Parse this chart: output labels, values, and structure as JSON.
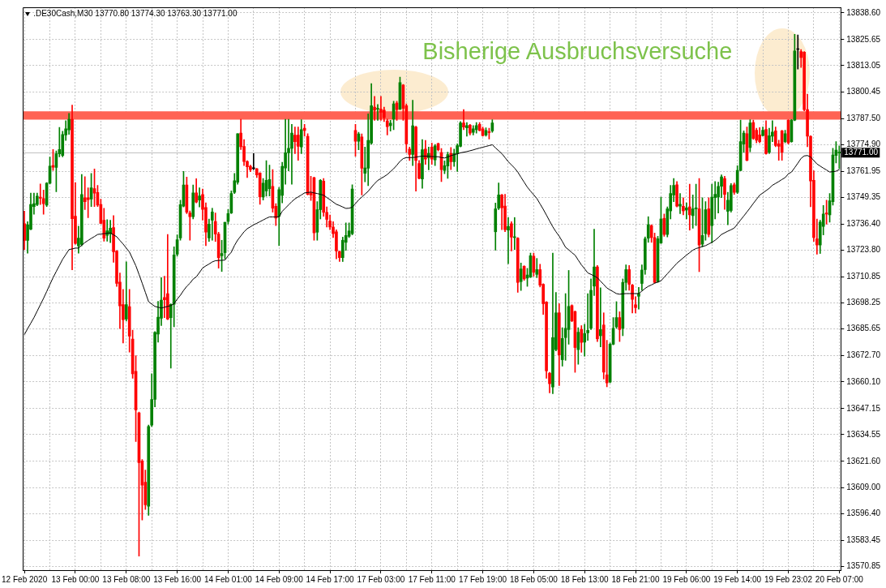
{
  "chart_data": {
    "type": "candlestick",
    "title": ".DE30Cash,M30 13770.80 13774.30 13763.30 13771.00",
    "annotations": [
      "Bisherige Ausbruchsversuche"
    ],
    "categories": [
      "12 Feb 2020",
      null,
      null,
      null,
      null,
      null,
      null,
      null,
      null,
      null,
      null,
      null,
      null,
      null,
      null,
      null,
      "13 Feb 00:00",
      null,
      null,
      null,
      null,
      null,
      null,
      null,
      null,
      null,
      null,
      null,
      null,
      null,
      null,
      null,
      "13 Feb 08:00",
      null,
      null,
      null,
      null,
      null,
      null,
      null,
      null,
      null,
      null,
      null,
      null,
      null,
      null,
      null,
      "13 Feb 16:00",
      null,
      null,
      null,
      null,
      null,
      null,
      null,
      null,
      null,
      null,
      null,
      null,
      null,
      null,
      null,
      "14 Feb 01:00",
      null,
      null,
      null,
      null,
      null,
      null,
      null,
      null,
      null,
      null,
      null,
      null,
      null,
      null,
      null,
      "14 Feb 09:00",
      null,
      null,
      null,
      null,
      null,
      null,
      null,
      null,
      null,
      null,
      null,
      null,
      null,
      null,
      null,
      "14 Feb 17:00",
      null,
      null,
      null,
      null,
      null,
      null,
      null,
      null,
      null,
      null,
      null,
      null,
      null,
      null,
      null,
      "17 Feb 03:00",
      null,
      null,
      null,
      null,
      null,
      null,
      null,
      null,
      null,
      null,
      null,
      null,
      null,
      null,
      null,
      "17 Feb 11:00",
      null,
      null,
      null,
      null,
      null,
      null,
      null,
      null,
      null,
      null,
      null,
      null,
      null,
      null,
      null,
      "17 Feb 19:00",
      null,
      null,
      null,
      null,
      null,
      null,
      null,
      null,
      null,
      null,
      null,
      null,
      null,
      null,
      null,
      "18 Feb 05:00",
      null,
      null,
      null,
      null,
      null,
      null,
      null,
      null,
      null,
      null,
      null,
      null,
      null,
      null,
      null,
      "18 Feb 13:00",
      null,
      null,
      null,
      null,
      null,
      null,
      null,
      null,
      null,
      null,
      null,
      null,
      null,
      null,
      null,
      "18 Feb 21:00",
      null,
      null,
      null,
      null,
      null,
      null,
      null,
      null,
      null,
      null,
      null,
      null,
      null,
      null,
      null,
      "19 Feb 06:00",
      null,
      null,
      null,
      null,
      null,
      null,
      null,
      null,
      null,
      null,
      null,
      null,
      null,
      null,
      null,
      "19 Feb 14:00",
      null,
      null,
      null,
      null,
      null,
      null,
      null,
      null,
      null,
      null,
      null,
      null,
      null,
      null,
      null,
      "19 Feb 23:02",
      null,
      null,
      null,
      null,
      null,
      null,
      null,
      null,
      null,
      null,
      null,
      null,
      null,
      null,
      null,
      "20 Feb 07:00"
    ],
    "ohlc": [
      [
        13736.6,
        13742.7,
        13724.0,
        13728.5
      ],
      [
        13728.5,
        13737.6,
        13722.3,
        13736.1
      ],
      [
        13733.9,
        13751.4,
        13733.6,
        13745.9
      ],
      [
        13744.9,
        13751.4,
        13741.2,
        13746.3
      ],
      [
        13745.9,
        13751.4,
        13745.3,
        13749.9
      ],
      [
        13749.5,
        13755.8,
        13745.9,
        13748.9
      ],
      [
        13748.8,
        13752.9,
        13741.2,
        13746.3
      ],
      [
        13745.6,
        13756.5,
        13744.9,
        13756.2
      ],
      [
        13756.2,
        13768.9,
        13755.8,
        13764.5
      ],
      [
        13764.8,
        13772.5,
        13762.4,
        13763.9
      ],
      [
        13763.8,
        13771.8,
        13752.1,
        13770.4
      ],
      [
        13770.4,
        13783.2,
        13768.9,
        13772.5
      ],
      [
        13769.6,
        13781.3,
        13768.9,
        13779.8
      ],
      [
        13779.5,
        13786.4,
        13776.9,
        13782.5
      ],
      [
        13782.0,
        13790.0,
        13779.8,
        13787.1
      ],
      [
        13787.1,
        13794.0,
        13714.3,
        13739.0
      ],
      [
        13740.2,
        13756.5,
        13726.7,
        13727.1
      ],
      [
        13725.9,
        13735.4,
        13722.3,
        13729.6
      ],
      [
        13726.6,
        13760.4,
        13725.9,
        13750.7
      ],
      [
        13749.2,
        13759.4,
        13743.4,
        13747.3
      ],
      [
        13749.2,
        13754.0,
        13739.5,
        13748.2
      ],
      [
        13748.5,
        13760.9,
        13744.9,
        13754.0
      ],
      [
        13753.6,
        13763.1,
        13744.9,
        13751.4
      ],
      [
        13751.7,
        13755.1,
        13744.9,
        13745.6
      ],
      [
        13745.9,
        13748.5,
        13736.6,
        13736.8
      ],
      [
        13738.3,
        13744.1,
        13728.1,
        13729.6
      ],
      [
        13731.0,
        13738.6,
        13728.1,
        13733.2
      ],
      [
        13731.7,
        13738.3,
        13727.4,
        13734.4
      ],
      [
        13734.7,
        13740.5,
        13717.9,
        13723.0
      ],
      [
        13723.4,
        13723.7,
        13706.3,
        13707.7
      ],
      [
        13708.4,
        13712.8,
        13685.9,
        13696.8
      ],
      [
        13697.5,
        13704.8,
        13678.9,
        13690.2
      ],
      [
        13690.5,
        13718.2,
        13689.5,
        13697.5
      ],
      [
        13696.5,
        13704.8,
        13674.5,
        13682.2
      ],
      [
        13680.8,
        13685.1,
        13661.8,
        13664.0
      ],
      [
        13665.2,
        13672.7,
        13631.2,
        13646.5
      ],
      [
        13645.1,
        13645.5,
        13575.8,
        13621.0
      ],
      [
        13621.7,
        13622.5,
        13593.3,
        13610.1
      ],
      [
        13611.5,
        13617.4,
        13598.4,
        13600.6
      ],
      [
        13599.9,
        13639.2,
        13595.5,
        13638.5
      ],
      [
        13639.2,
        13664.0,
        13638.5,
        13651.6
      ],
      [
        13651.6,
        13684.4,
        13648.0,
        13684.0
      ],
      [
        13683.2,
        13699.0,
        13679.3,
        13691.4
      ],
      [
        13690.9,
        13710.5,
        13687.3,
        13699.6
      ],
      [
        13700.9,
        13711.2,
        13691.2,
        13699.8
      ],
      [
        13702.8,
        13731.4,
        13690.2,
        13690.5
      ],
      [
        13691.2,
        13697.9,
        13666.7,
        13697.6
      ],
      [
        13697.6,
        13725.4,
        13686.7,
        13721.5
      ],
      [
        13721.9,
        13731.2,
        13720.9,
        13728.9
      ],
      [
        13729.7,
        13748.0,
        13728.6,
        13745.8
      ],
      [
        13745.1,
        13761.9,
        13744.7,
        13755.3
      ],
      [
        13755.3,
        13759.2,
        13741.5,
        13742.2
      ],
      [
        13741.8,
        13742.8,
        13728.6,
        13740.0
      ],
      [
        13740.0,
        13755.3,
        13738.9,
        13751.5
      ],
      [
        13751.5,
        13758.4,
        13746.7,
        13747.1
      ],
      [
        13748.0,
        13754.0,
        13744.7,
        13750.0
      ],
      [
        13750.7,
        13753.4,
        13738.3,
        13743.5
      ],
      [
        13744.5,
        13746.7,
        13726.0,
        13732.5
      ],
      [
        13729.7,
        13738.9,
        13728.0,
        13736.4
      ],
      [
        13738.3,
        13744.1,
        13728.6,
        13742.3
      ],
      [
        13737.7,
        13741.8,
        13728.0,
        13731.6
      ],
      [
        13731.6,
        13732.5,
        13715.1,
        13720.2
      ],
      [
        13721.1,
        13728.6,
        13713.5,
        13722.2
      ],
      [
        13722.6,
        13737.3,
        13719.6,
        13737.3
      ],
      [
        13737.7,
        13743.5,
        13736.4,
        13741.5
      ],
      [
        13741.8,
        13752.5,
        13741.5,
        13751.2
      ],
      [
        13751.8,
        13760.9,
        13751.2,
        13757.4
      ],
      [
        13756.7,
        13780.2,
        13755.7,
        13780.2
      ],
      [
        13780.5,
        13787.1,
        13772.5,
        13773.8
      ],
      [
        13774.0,
        13777.3,
        13764.7,
        13766.7
      ],
      [
        13766.7,
        13767.1,
        13758.9,
        13764.1
      ],
      [
        13764.4,
        13765.0,
        13761.8,
        13762.8
      ],
      [
        13763.3,
        13770.5,
        13762.8,
        13763.3
      ],
      [
        13763.2,
        13763.4,
        13758.9,
        13760.2
      ],
      [
        13761.1,
        13761.3,
        13746.0,
        13749.6
      ],
      [
        13749.5,
        13758.5,
        13748.0,
        13756.2
      ],
      [
        13752.5,
        13767.1,
        13749.9,
        13757.6
      ],
      [
        13753.5,
        13765.0,
        13750.0,
        13758.0
      ],
      [
        13754.7,
        13762.8,
        13742.2,
        13744.1
      ],
      [
        13745.0,
        13746.3,
        13735.7,
        13739.3
      ],
      [
        13740.2,
        13754.2,
        13726.0,
        13753.1
      ],
      [
        13750.3,
        13766.3,
        13746.7,
        13764.4
      ],
      [
        13763.5,
        13787.1,
        13755.7,
        13770.9
      ],
      [
        13770.9,
        13787.1,
        13762.2,
        13773.1
      ],
      [
        13773.1,
        13784.7,
        13755.7,
        13780.5
      ],
      [
        13779.5,
        13783.4,
        13770.5,
        13776.3
      ],
      [
        13779.5,
        13783.4,
        13767.3,
        13774.0
      ],
      [
        13773.7,
        13786.9,
        13770.5,
        13782.1
      ],
      [
        13782.8,
        13784.7,
        13778.9,
        13781.7
      ],
      [
        13778.9,
        13780.2,
        13750.5,
        13750.8
      ],
      [
        13751.6,
        13759.6,
        13747.9,
        13750.5
      ],
      [
        13758.9,
        13759.2,
        13728.6,
        13732.2
      ],
      [
        13732.5,
        13747.3,
        13728.6,
        13743.4
      ],
      [
        13743.4,
        13758.0,
        13738.9,
        13757.6
      ],
      [
        13757.2,
        13758.5,
        13740.2,
        13742.1
      ],
      [
        13742.1,
        13744.7,
        13735.0,
        13738.7
      ],
      [
        13737.9,
        13740.8,
        13733.7,
        13735.0
      ],
      [
        13735.0,
        13737.6,
        13729.9,
        13731.8
      ],
      [
        13732.7,
        13733.7,
        13719.6,
        13723.4
      ],
      [
        13723.2,
        13723.4,
        13718.3,
        13720.2
      ],
      [
        13720.2,
        13730.1,
        13718.3,
        13728.6
      ],
      [
        13727.6,
        13737.0,
        13723.7,
        13730.9
      ],
      [
        13730.5,
        13737.0,
        13729.9,
        13733.1
      ],
      [
        13731.8,
        13755.4,
        13731.2,
        13753.4
      ],
      [
        13781.7,
        13784.7,
        13769.2,
        13776.5
      ],
      [
        13776.5,
        13780.8,
        13772.4,
        13780.1
      ],
      [
        13778.6,
        13780.1,
        13750.5,
        13763.4
      ],
      [
        13761.0,
        13773.7,
        13756.9,
        13763.6
      ],
      [
        13763.4,
        13789.8,
        13755.0,
        13776.9
      ],
      [
        13775.6,
        13804.4,
        13775.0,
        13793.7
      ],
      [
        13793.0,
        13798.2,
        13786.6,
        13791.5
      ],
      [
        13792.0,
        13794.3,
        13786.6,
        13792.4
      ],
      [
        13792.0,
        13798.2,
        13786.6,
        13790.5
      ],
      [
        13791.5,
        13793.0,
        13786.0,
        13788.0
      ],
      [
        13786.3,
        13787.2,
        13779.5,
        13783.6
      ],
      [
        13784.0,
        13786.6,
        13781.4,
        13785.3
      ],
      [
        13787.2,
        13795.9,
        13782.1,
        13794.6
      ],
      [
        13795.0,
        13795.9,
        13786.6,
        13791.8
      ],
      [
        13792.0,
        13807.5,
        13791.8,
        13804.9
      ],
      [
        13803.7,
        13804.0,
        13786.6,
        13792.4
      ],
      [
        13793.7,
        13794.6,
        13771.1,
        13775.2
      ],
      [
        13772.7,
        13773.7,
        13767.2,
        13770.1
      ],
      [
        13770.1,
        13796.3,
        13764.7,
        13784.0
      ],
      [
        13783.4,
        13783.8,
        13752.4,
        13767.2
      ],
      [
        13765.7,
        13767.2,
        13758.2,
        13758.5
      ],
      [
        13758.2,
        13777.3,
        13753.7,
        13772.4
      ],
      [
        13772.7,
        13776.9,
        13765.3,
        13767.9
      ],
      [
        13768.5,
        13773.7,
        13762.7,
        13770.5
      ],
      [
        13773.7,
        13775.6,
        13765.3,
        13767.9
      ],
      [
        13767.5,
        13775.0,
        13764.7,
        13774.3
      ],
      [
        13775.4,
        13775.6,
        13771.8,
        13772.4
      ],
      [
        13771.0,
        13773.0,
        13757.0,
        13762.8
      ],
      [
        13762.4,
        13767.0,
        13760.8,
        13764.7
      ],
      [
        13764.5,
        13771.2,
        13758.5,
        13770.1
      ],
      [
        13770.5,
        13773.5,
        13762.8,
        13766.6
      ],
      [
        13766.6,
        13772.7,
        13764.3,
        13770.5
      ],
      [
        13770.5,
        13775.3,
        13761.9,
        13774.4
      ],
      [
        13774.0,
        13786.0,
        13773.7,
        13785.4
      ],
      [
        13785.4,
        13791.8,
        13782.1,
        13783.4
      ],
      [
        13783.0,
        13785.6,
        13778.9,
        13784.1
      ],
      [
        13784.3,
        13784.7,
        13779.5,
        13780.4
      ],
      [
        13780.8,
        13784.1,
        13779.5,
        13782.5
      ],
      [
        13782.1,
        13785.6,
        13780.4,
        13784.1
      ],
      [
        13784.7,
        13785.6,
        13781.5,
        13781.7
      ],
      [
        13782.5,
        13783.4,
        13778.9,
        13779.2
      ],
      [
        13779.5,
        13783.0,
        13778.9,
        13781.7
      ],
      [
        13781.0,
        13782.8,
        13777.6,
        13780.7
      ],
      [
        13781.5,
        13786.9,
        13780.8,
        13785.4
      ],
      [
        13732.7,
        13746.6,
        13723.8,
        13743.8
      ],
      [
        13744.1,
        13756.3,
        13743.4,
        13750.5
      ],
      [
        13750.5,
        13750.8,
        13733.7,
        13744.3
      ],
      [
        13745.1,
        13750.8,
        13732.7,
        13733.7
      ],
      [
        13733.5,
        13739.6,
        13717.2,
        13735.3
      ],
      [
        13736.6,
        13737.6,
        13723.4,
        13730.1
      ],
      [
        13729.9,
        13739.6,
        13724.1,
        13730.3
      ],
      [
        13729.6,
        13729.9,
        13703.4,
        13708.2
      ],
      [
        13708.6,
        13717.6,
        13704.3,
        13714.7
      ],
      [
        13716.0,
        13716.3,
        13709.2,
        13709.9
      ],
      [
        13710.3,
        13715.0,
        13706.3,
        13711.8
      ],
      [
        13710.8,
        13722.4,
        13710.5,
        13721.1
      ],
      [
        13720.9,
        13722.4,
        13711.2,
        13713.1
      ],
      [
        13712.1,
        13719.8,
        13710.5,
        13714.4
      ],
      [
        13714.4,
        13717.0,
        13706.0,
        13706.9
      ],
      [
        13707.3,
        13707.6,
        13692.7,
        13697.9
      ],
      [
        13698.7,
        13698.9,
        13661.8,
        13665.4
      ],
      [
        13664.3,
        13664.7,
        13654.8,
        13659.2
      ],
      [
        13657.6,
        13722.4,
        13654.4,
        13681.5
      ],
      [
        13675.7,
        13703.4,
        13675.1,
        13693.5
      ],
      [
        13693.5,
        13697.9,
        13658.3,
        13673.1
      ],
      [
        13670.8,
        13686.3,
        13667.7,
        13681.1
      ],
      [
        13681.5,
        13702.8,
        13670.5,
        13686.0
      ],
      [
        13685.4,
        13714.0,
        13678.3,
        13696.6
      ],
      [
        13697.0,
        13697.4,
        13689.2,
        13689.6
      ],
      [
        13694.1,
        13694.4,
        13664.7,
        13676.7
      ],
      [
        13675.7,
        13686.3,
        13668.6,
        13684.1
      ],
      [
        13685.5,
        13687.3,
        13674.4,
        13679.2
      ],
      [
        13679.3,
        13688.0,
        13672.5,
        13683.5
      ],
      [
        13683.8,
        13702.8,
        13680.2,
        13685.0
      ],
      [
        13686.0,
        13709.9,
        13685.4,
        13704.4
      ],
      [
        13706.4,
        13734.0,
        13701.8,
        13715.7
      ],
      [
        13715.7,
        13716.4,
        13679.6,
        13680.9
      ],
      [
        13682.4,
        13705.6,
        13677.0,
        13685.4
      ],
      [
        13687.6,
        13693.5,
        13661.5,
        13664.8
      ],
      [
        13663.5,
        13680.2,
        13657.7,
        13659.6
      ],
      [
        13660.0,
        13678.9,
        13659.6,
        13678.3
      ],
      [
        13678.3,
        13691.2,
        13678.0,
        13686.0
      ],
      [
        13686.7,
        13698.9,
        13686.0,
        13691.2
      ],
      [
        13691.2,
        13694.0,
        13679.6,
        13685.4
      ],
      [
        13686.0,
        13709.9,
        13682.4,
        13708.2
      ],
      [
        13708.2,
        13716.7,
        13704.4,
        13714.4
      ],
      [
        13714.4,
        13716.4,
        13704.4,
        13707.3
      ],
      [
        13706.9,
        13707.3,
        13693.4,
        13700.0
      ],
      [
        13697.4,
        13701.3,
        13693.4,
        13696.0
      ],
      [
        13701.5,
        13705.8,
        13695.3,
        13702.8
      ],
      [
        13707.7,
        13716.7,
        13704.4,
        13714.2
      ],
      [
        13714.4,
        13730.2,
        13712.1,
        13729.3
      ],
      [
        13729.6,
        13740.0,
        13727.6,
        13736.1
      ],
      [
        13735.7,
        13736.1,
        13727.6,
        13729.9
      ],
      [
        13729.9,
        13732.1,
        13707.9,
        13708.2
      ],
      [
        13708.6,
        13730.5,
        13708.2,
        13729.3
      ],
      [
        13727.3,
        13749.5,
        13727.0,
        13738.9
      ],
      [
        13739.2,
        13741.3,
        13730.5,
        13731.4
      ],
      [
        13731.4,
        13744.7,
        13730.2,
        13743.8
      ],
      [
        13742.8,
        13755.1,
        13738.9,
        13751.2
      ],
      [
        13750.5,
        13758.5,
        13747.3,
        13755.1
      ],
      [
        13755.4,
        13757.0,
        13744.7,
        13745.1
      ],
      [
        13745.1,
        13751.2,
        13741.5,
        13746.0
      ],
      [
        13745.0,
        13749.2,
        13740.9,
        13742.8
      ],
      [
        13743.2,
        13746.7,
        13738.9,
        13744.3
      ],
      [
        13744.7,
        13755.7,
        13733.5,
        13740.9
      ],
      [
        13740.5,
        13750.5,
        13734.4,
        13743.8
      ],
      [
        13743.8,
        13755.7,
        13735.7,
        13744.3
      ],
      [
        13743.8,
        13758.5,
        13713.4,
        13726.3
      ],
      [
        13726.7,
        13749.2,
        13725.4,
        13730.9
      ],
      [
        13731.8,
        13747.3,
        13728.6,
        13743.4
      ],
      [
        13743.8,
        13749.2,
        13730.2,
        13731.4
      ],
      [
        13735.7,
        13755.7,
        13727.3,
        13749.5
      ],
      [
        13749.2,
        13757.0,
        13738.9,
        13750.8
      ],
      [
        13749.5,
        13756.7,
        13741.8,
        13754.7
      ],
      [
        13754.7,
        13760.2,
        13749.2,
        13759.3
      ],
      [
        13758.5,
        13759.6,
        13743.5,
        13750.8
      ],
      [
        13742.6,
        13751.8,
        13736.1,
        13748.0
      ],
      [
        13743.0,
        13756.0,
        13742.2,
        13755.0
      ],
      [
        13755.4,
        13756.3,
        13750.8,
        13751.8
      ],
      [
        13751.8,
        13764.7,
        13751.2,
        13762.4
      ],
      [
        13762.4,
        13786.7,
        13762.2,
        13776.3
      ],
      [
        13775.1,
        13781.5,
        13771.2,
        13780.5
      ],
      [
        13780.2,
        13783.4,
        13767.0,
        13767.3
      ],
      [
        13773.5,
        13786.9,
        13771.4,
        13785.4
      ],
      [
        13785.6,
        13786.7,
        13777.4,
        13777.9
      ],
      [
        13781.8,
        13782.8,
        13775.7,
        13777.0
      ],
      [
        13779.6,
        13783.1,
        13775.7,
        13776.3
      ],
      [
        13779.2,
        13783.4,
        13778.9,
        13781.8
      ],
      [
        13782.2,
        13786.4,
        13770.2,
        13770.5
      ],
      [
        13771.2,
        13782.8,
        13770.5,
        13779.2
      ],
      [
        13778.9,
        13786.4,
        13776.3,
        13780.9
      ],
      [
        13781.5,
        13783.4,
        13773.8,
        13774.4
      ],
      [
        13775.3,
        13777.0,
        13767.3,
        13774.0
      ],
      [
        13781.5,
        13781.8,
        13767.3,
        13771.2
      ],
      [
        13776.3,
        13781.8,
        13775.7,
        13780.2
      ],
      [
        13786.7,
        13786.9,
        13775.1,
        13775.7
      ],
      [
        13776.3,
        13787.0,
        13776.0,
        13786.7
      ],
      [
        13786.7,
        13828.2,
        13786.4,
        13820.2
      ],
      [
        13820.9,
        13827.9,
        13811.4,
        13820.9
      ],
      [
        13819.9,
        13820.9,
        13812.2,
        13817.0
      ],
      [
        13819.6,
        13819.9,
        13791.2,
        13791.8
      ],
      [
        13791.8,
        13799.3,
        13773.8,
        13778.9
      ],
      [
        13778.9,
        13779.2,
        13744.8,
        13757.3
      ],
      [
        13757.6,
        13762.2,
        13728.0,
        13729.9
      ],
      [
        13729.3,
        13738.9,
        13721.9,
        13726.3
      ],
      [
        13726.3,
        13738.3,
        13722.2,
        13737.4
      ],
      [
        13735.3,
        13745.4,
        13731.2,
        13741.3
      ],
      [
        13741.8,
        13748.0,
        13736.4,
        13741.3
      ],
      [
        13740.9,
        13751.2,
        13737.4,
        13747.7
      ],
      [
        13747.3,
        13773.1,
        13745.6,
        13769.9
      ],
      [
        13769.6,
        13776.3,
        13766.0,
        13772.2
      ],
      [
        13770.8,
        13774.3,
        13763.3,
        13771.0
      ]
    ],
    "colors": [
      "#ff0000",
      "#008000",
      "#008000",
      "#008000",
      "#008000",
      "#ff0000",
      "#ff0000",
      "#008000",
      "#008000",
      "#ff0000",
      "#008000",
      "#008000",
      "#008000",
      "#008000",
      "#008000",
      "#ff0000",
      "#ff0000",
      "#008000",
      "#008000",
      "#ff0000",
      "#ff0000",
      "#008000",
      "#ff0000",
      "#ff0000",
      "#ff0000",
      "#ff0000",
      "#008000",
      "#008000",
      "#ff0000",
      "#ff0000",
      "#ff0000",
      "#ff0000",
      "#008000",
      "#ff0000",
      "#ff0000",
      "#ff0000",
      "#ff0000",
      "#ff0000",
      "#ff0000",
      "#008000",
      "#008000",
      "#008000",
      "#008000",
      "#008000",
      "#ff0000",
      "#ff0000",
      "#008000",
      "#008000",
      "#008000",
      "#008000",
      "#008000",
      "#ff0000",
      "#ff0000",
      "#008000",
      "#ff0000",
      "#008000",
      "#ff0000",
      "#ff0000",
      "#008000",
      "#008000",
      "#ff0000",
      "#ff0000",
      "#008000",
      "#008000",
      "#008000",
      "#008000",
      "#008000",
      "#008000",
      "#ff0000",
      "#ff0000",
      "#ff0000",
      "#ff0000",
      "#000000",
      "#ff0000",
      "#ff0000",
      "#008000",
      "#008000",
      "#008000",
      "#ff0000",
      "#ff0000",
      "#008000",
      "#008000",
      "#008000",
      "#008000",
      "#008000",
      "#ff0000",
      "#ff0000",
      "#008000",
      "#ff0000",
      "#ff0000",
      "#ff0000",
      "#ff0000",
      "#008000",
      "#008000",
      "#ff0000",
      "#ff0000",
      "#ff0000",
      "#ff0000",
      "#ff0000",
      "#ff0000",
      "#008000",
      "#008000",
      "#008000",
      "#008000",
      "#ff0000",
      "#008000",
      "#ff0000",
      "#008000",
      "#008000",
      "#008000",
      "#ff0000",
      "#008000",
      "#ff0000",
      "#ff0000",
      "#ff0000",
      "#008000",
      "#008000",
      "#ff0000",
      "#008000",
      "#ff0000",
      "#ff0000",
      "#ff0000",
      "#008000",
      "#ff0000",
      "#ff0000",
      "#008000",
      "#ff0000",
      "#008000",
      "#ff0000",
      "#008000",
      "#ff0000",
      "#ff0000",
      "#008000",
      "#008000",
      "#ff0000",
      "#008000",
      "#008000",
      "#008000",
      "#ff0000",
      "#008000",
      "#ff0000",
      "#008000",
      "#008000",
      "#ff0000",
      "#ff0000",
      "#008000",
      "#ff0000",
      "#008000",
      "#008000",
      "#008000",
      "#ff0000",
      "#ff0000",
      "#008000",
      "#ff0000",
      "#008000",
      "#ff0000",
      "#008000",
      "#ff0000",
      "#008000",
      "#008000",
      "#ff0000",
      "#008000",
      "#ff0000",
      "#ff0000",
      "#ff0000",
      "#ff0000",
      "#008000",
      "#008000",
      "#ff0000",
      "#008000",
      "#008000",
      "#008000",
      "#ff0000",
      "#ff0000",
      "#008000",
      "#ff0000",
      "#008000",
      "#008000",
      "#008000",
      "#008000",
      "#ff0000",
      "#008000",
      "#ff0000",
      "#ff0000",
      "#008000",
      "#008000",
      "#008000",
      "#ff0000",
      "#008000",
      "#008000",
      "#ff0000",
      "#ff0000",
      "#ff0000",
      "#008000",
      "#008000",
      "#008000",
      "#008000",
      "#ff0000",
      "#ff0000",
      "#008000",
      "#008000",
      "#ff0000",
      "#008000",
      "#008000",
      "#008000",
      "#ff0000",
      "#008000",
      "#ff0000",
      "#008000",
      "#ff0000",
      "#008000",
      "#008000",
      "#ff0000",
      "#008000",
      "#008000",
      "#ff0000",
      "#008000",
      "#008000",
      "#008000",
      "#008000",
      "#ff0000",
      "#008000",
      "#008000",
      "#ff0000",
      "#008000",
      "#008000",
      "#008000",
      "#ff0000",
      "#008000",
      "#ff0000",
      "#ff0000",
      "#ff0000",
      "#008000",
      "#ff0000",
      "#008000",
      "#008000",
      "#ff0000",
      "#ff0000",
      "#ff0000",
      "#008000",
      "#ff0000",
      "#008000",
      "#008000",
      "#000000",
      "#ff0000",
      "#ff0000",
      "#ff0000",
      "#ff0000",
      "#ff0000",
      "#ff0000",
      "#008000",
      "#008000",
      "#ff0000",
      "#008000",
      "#008000",
      "#008000",
      "#008000"
    ],
    "series": [
      {
        "type": "line",
        "color": "#000000",
        "values": [
          13683.0,
          13685.8,
          13688.5,
          13691.2,
          13694.3,
          13697.4,
          13700.5,
          13703.8,
          13707.2,
          13710.5,
          13713.5,
          13716.4,
          13719.4,
          13721.7,
          13724.1,
          13724.4,
          13724.8,
          13724.8,
          13726.2,
          13727.5,
          13728.5,
          13729.5,
          13730.4,
          13731.4,
          13731.6,
          13731.8,
          13732.0,
          13732.2,
          13731.2,
          13730.3,
          13728.5,
          13726.8,
          13724.8,
          13722.9,
          13719.6,
          13716.3,
          13712.1,
          13707.8,
          13703.4,
          13698.9,
          13697.7,
          13696.6,
          13696.2,
          13695.8,
          13696.2,
          13696.6,
          13697.0,
          13697.9,
          13700.1,
          13702.0,
          13704.3,
          13706.3,
          13707.8,
          13709.8,
          13710.9,
          13713.0,
          13715.2,
          13716.2,
          13717.1,
          13718.1,
          13718.7,
          13718.8,
          13718.9,
          13719.0,
          13721.1,
          13722.8,
          13726.1,
          13728.7,
          13730.7,
          13732.7,
          13734.2,
          13735.1,
          13736.1,
          13736.8,
          13737.6,
          13738.4,
          13739.2,
          13739.9,
          13739.9,
          13739.9,
          13739.9,
          13742.6,
          13744.2,
          13745.7,
          13747.3,
          13748.6,
          13749.6,
          13750.5,
          13751.5,
          13751.7,
          13751.9,
          13751.5,
          13751.2,
          13750.8,
          13750.4,
          13749.3,
          13748.2,
          13747.1,
          13746.0,
          13745.4,
          13744.7,
          13744.0,
          13744.1,
          13744.6,
          13746.3,
          13748.1,
          13749.5,
          13750.9,
          13752.3,
          13754.2,
          13756.0,
          13757.5,
          13758.5,
          13759.4,
          13760.4,
          13761.8,
          13763.2,
          13764.9,
          13766.8,
          13768.1,
          13768.6,
          13768.6,
          13768.6,
          13768.8,
          13769.1,
          13769.3,
          13769.3,
          13769.2,
          13769.1,
          13769.0,
          13769.0,
          13768.6,
          13768.4,
          13768.9,
          13769.5,
          13770.0,
          13770.4,
          13770.9,
          13771.2,
          13771.5,
          13771.9,
          13772.3,
          13772.8,
          13773.2,
          13773.6,
          13774.0,
          13774.4,
          13774.8,
          13773.3,
          13771.9,
          13770.5,
          13768.6,
          13766.6,
          13765.1,
          13763.5,
          13761.6,
          13759.1,
          13756.7,
          13754.3,
          13752.4,
          13750.6,
          13748.8,
          13746.2,
          13743.6,
          13740.8,
          13737.9,
          13735.1,
          13732.7,
          13730.6,
          13728.0,
          13725.2,
          13724.0,
          13722.6,
          13721.4,
          13719.0,
          13716.7,
          13714.8,
          13712.8,
          13712.1,
          13711.3,
          13710.5,
          13708.8,
          13707.2,
          13705.5,
          13704.6,
          13703.7,
          13702.8,
          13702.5,
          13702.7,
          13702.8,
          13702.8,
          13702.8,
          13702.8,
          13702.8,
          13704.0,
          13705.3,
          13706.3,
          13707.0,
          13707.8,
          13708.4,
          13709.0,
          13710.7,
          13712.4,
          13714.1,
          13715.8,
          13717.5,
          13718.8,
          13720.1,
          13721.4,
          13722.6,
          13723.8,
          13724.6,
          13725.0,
          13725.6,
          13726.0,
          13726.8,
          13727.6,
          13728.6,
          13729.9,
          13731.4,
          13732.2,
          13733.0,
          13733.7,
          13734.5,
          13736.4,
          13738.4,
          13740.3,
          13742.3,
          13744.3,
          13746.4,
          13748.4,
          13750.4,
          13751.5,
          13752.6,
          13753.7,
          13755.2,
          13756.1,
          13757.0,
          13758.0,
          13758.9,
          13760.7,
          13761.6,
          13763.7,
          13765.9,
          13768.2,
          13769.4,
          13769.6,
          13768.9,
          13767.2,
          13765.5,
          13764.5,
          13763.5,
          13762.6,
          13761.6,
          13761.8,
          13762.0,
          13762.8
        ]
      }
    ],
    "ylim": [
      13569,
      13841.3
    ],
    "yticks": [
      {
        "value": 13838.6,
        "label": "13838.60"
      },
      13825.65,
      13813.05,
      13800.45,
      {
        "value": 13787.5,
        "label": "13787.50"
      },
      {
        "value": 13774.9,
        "label": "13774.90"
      },
      13761.95,
      13749.35,
      {
        "value": 13736.4,
        "label": "13736.40"
      },
      {
        "value": 13723.8,
        "label": "13723.80"
      },
      13710.85,
      13698.25,
      13685.65,
      {
        "value": 13672.7,
        "label": "13672.70"
      },
      {
        "value": 13660.1,
        "label": "13660.10"
      },
      13647.15,
      13634.55,
      {
        "value": 13621.6,
        "label": "13621.60"
      },
      {
        "value": 13609,
        "label": "13609.00"
      },
      {
        "value": 13596.4,
        "label": "13596.40"
      },
      13583.45,
      13570.85
    ],
    "grid": true,
    "ref_lines": [
      {
        "axis": "y",
        "value": 13771,
        "label": "13771.00",
        "color": "#c0c0c0"
      }
    ],
    "bands": [
      {
        "axis": "y",
        "from": 13787,
        "to": 13791,
        "color": "#ff6354"
      }
    ]
  }
}
